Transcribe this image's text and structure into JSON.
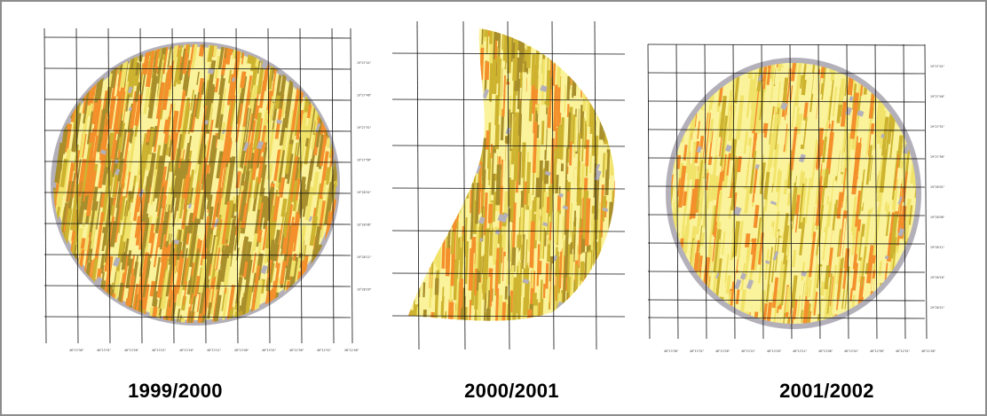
{
  "colors": {
    "gray": "#b3b0ba",
    "pale_yellow": "#fbf39b",
    "yellow": "#f1e36a",
    "ochre": "#cdb32f",
    "olive": "#a98f2c",
    "orange": "#f4902c",
    "grid": "#111111"
  },
  "maps": [
    {
      "label": "1999/2000",
      "palette": [
        "olive",
        "orange",
        "ochre",
        "olive",
        "orange",
        "yellow"
      ],
      "tick_labels_x": [
        "46°13'36\"",
        "46°13'31\"",
        "46°13'26\"",
        "46°13'21\"",
        "46°13'16\"",
        "46°13'11\"",
        "46°13'06\"",
        "46°13'01\"",
        "46°12'56\"",
        "46°12'51\"",
        "46°12'46\""
      ],
      "tick_labels_y": [
        "19°27'41\"",
        "19°27'46\"",
        "19°27'51\"",
        "19°27'56\"",
        "19°28'01\"",
        "19°28'06\"",
        "19°28'11\"",
        "19°28'16\""
      ]
    },
    {
      "label": "2000/2001",
      "palette": [
        "ochre",
        "olive",
        "yellow",
        "pale_yellow",
        "orange",
        "ochre"
      ],
      "tick_labels_x": [],
      "tick_labels_y": []
    },
    {
      "label": "2001/2002",
      "palette": [
        "yellow",
        "pale_yellow",
        "ochre",
        "orange",
        "yellow",
        "pale_yellow"
      ],
      "tick_labels_x": [
        "46°13'36\"",
        "46°13'31\"",
        "46°13'26\"",
        "46°13'21\"",
        "46°13'16\"",
        "46°13'11\"",
        "46°13'06\"",
        "46°13'01\"",
        "46°12'56\"",
        "46°12'51\"",
        "46°12'46\""
      ],
      "tick_labels_y": [
        "19°27'41\"",
        "19°27'46\"",
        "19°27'51\"",
        "19°27'56\"",
        "19°28'01\"",
        "19°28'06\"",
        "19°28'11\"",
        "19°28'16\"",
        "19°28'21\""
      ]
    }
  ]
}
